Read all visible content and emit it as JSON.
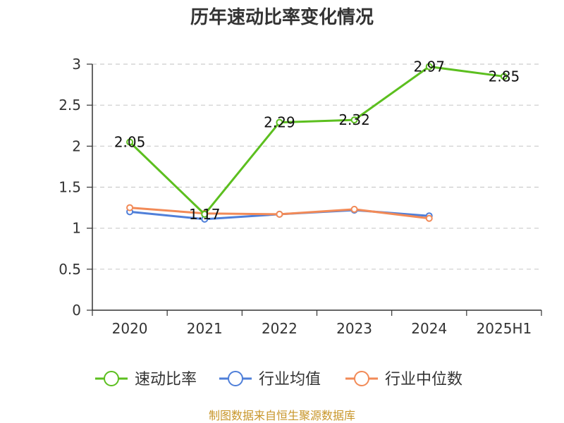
{
  "chart_data": {
    "type": "line",
    "title": "历年速动比率变化情况",
    "categories": [
      "2020",
      "2021",
      "2022",
      "2023",
      "2024",
      "2025H1"
    ],
    "y_ticks": [
      "0",
      "0.5",
      "1",
      "1.5",
      "2",
      "2.5",
      "3"
    ],
    "ylim": [
      0,
      3
    ],
    "grid": "horizontal-dashed",
    "legend_position": "bottom",
    "series": [
      {
        "name": "速动比率",
        "color": "#5cbf1f",
        "values": [
          2.05,
          1.17,
          2.29,
          2.32,
          2.97,
          2.85
        ],
        "labels": [
          "2.05",
          "1.17",
          "2.29",
          "2.32",
          "2.97",
          "2.85"
        ]
      },
      {
        "name": "行业均值",
        "color": "#4f7fd9",
        "values": [
          1.2,
          1.11,
          1.17,
          1.22,
          1.15,
          null
        ]
      },
      {
        "name": "行业中位数",
        "color": "#f28a57",
        "values": [
          1.25,
          1.18,
          1.17,
          1.23,
          1.12,
          null
        ]
      }
    ],
    "source": "制图数据来自恒生聚源数据库"
  }
}
